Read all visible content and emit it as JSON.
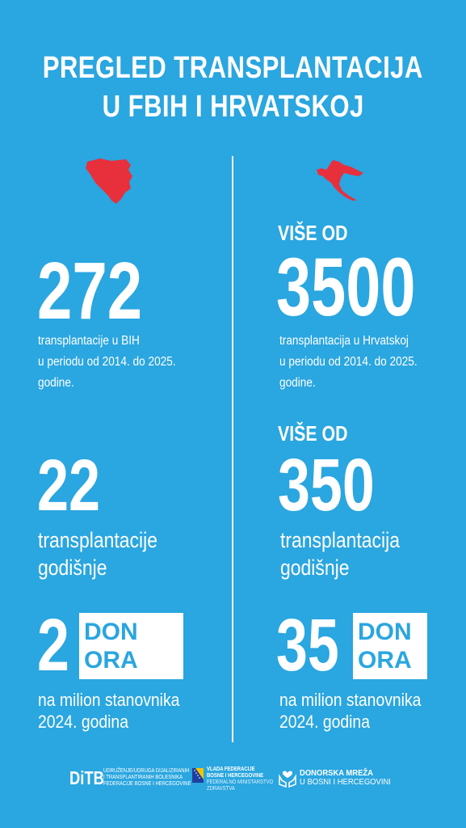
{
  "title": {
    "line1": "PREGLED TRANSPLANTACIJA",
    "line2": "U FBIH I HRVATSKOJ"
  },
  "colors": {
    "background": "#2aa6e0",
    "map": "#e8303d",
    "text": "#ffffff"
  },
  "left": {
    "stat1": {
      "value": "272",
      "desc_lines": [
        "transplantacije u BIH",
        "u periodu od 2014. do 2025.",
        "godine."
      ]
    },
    "stat2": {
      "value": "22",
      "line1": "transplantacije",
      "line2": "godišnje"
    },
    "stat3": {
      "value": "2",
      "box_line1": "DON",
      "box_line2": "ORA",
      "line1": "na milion stanovnika",
      "line2": "2024. godina"
    }
  },
  "right": {
    "stat1": {
      "prefix": "VIŠE OD",
      "value": "3500",
      "desc_lines": [
        "transplantacija u Hrvatskoj",
        "u periodu od 2014. do 2025.",
        "godine."
      ]
    },
    "stat2": {
      "prefix": "VIŠE OD",
      "value": "350",
      "line1": "transplantacija",
      "line2": "godišnje"
    },
    "stat3": {
      "value": "35",
      "box_line1": "DON",
      "box_line2": "ORA",
      "line1": "na milion stanovnika",
      "line2": "2024. godina"
    }
  },
  "footer": {
    "ditb": {
      "logo": "DiTB",
      "lines": [
        "UDRUŽENJE/UDRUGA DIJALIZIRANIH",
        "I TRANSPLANTIRANIH BOLESNIKA",
        "FEDERACIJE BOSNE I HERCEGOVINE"
      ]
    },
    "vlada": {
      "lines_bold": [
        "VLADA FEDERACIJE",
        "BOSNE I HERCEGOVINE"
      ],
      "lines_light": [
        "FEDERALNO MINISTARSTVO",
        "ZDRAVSTVA"
      ]
    },
    "donorska": {
      "line1": "DONORSKA MREŽA",
      "line2": "U BOSNI I HERCEGOVINI"
    }
  },
  "icons": {
    "left_map": "bih-map-icon",
    "right_map": "croatia-map-icon",
    "flag": "bih-flag-icon",
    "hands": "hands-heart-icon"
  }
}
